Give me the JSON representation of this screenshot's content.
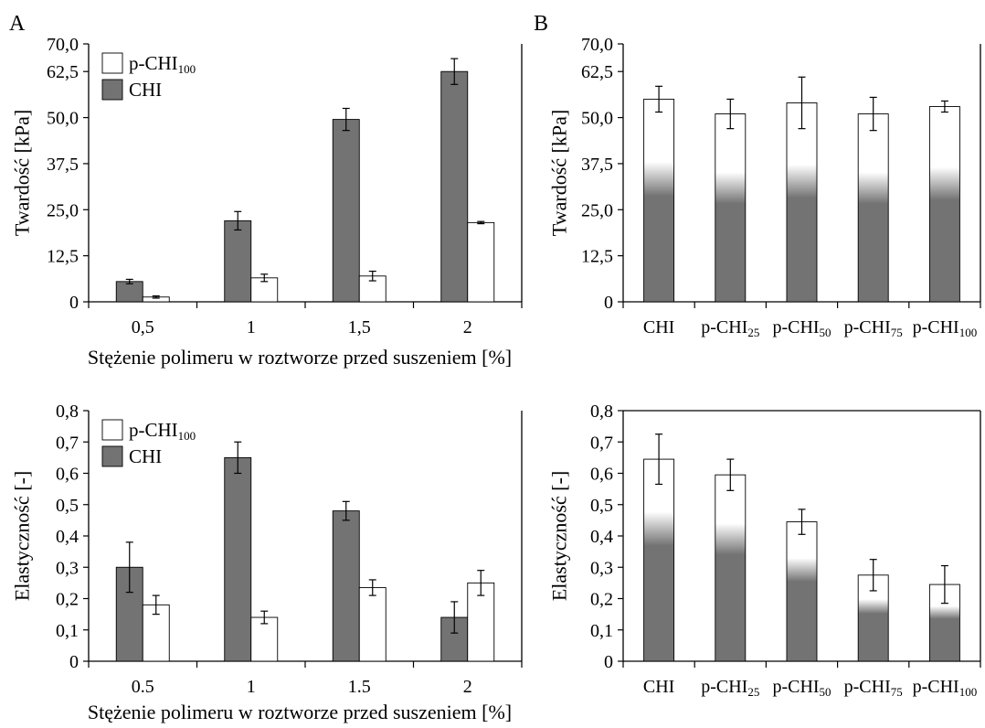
{
  "figure": {
    "panel_a_letter": "A",
    "panel_b_letter": "B"
  },
  "colors": {
    "chi": "#737373",
    "pchi": "#ffffff",
    "edge": "#000000"
  },
  "chart_data": [
    {
      "id": "top_left",
      "type": "bar",
      "xlabel": "Stężenie polimeru w roztworze przed suszeniem [%]",
      "ylabel": "Twardość [kPa]",
      "ylim": [
        0,
        70
      ],
      "yticks": [
        "0",
        "12,5",
        "25,0",
        "37,5",
        "50,0",
        "62,5",
        "70,0"
      ],
      "ytick_values": [
        0,
        12.5,
        25,
        37.5,
        50,
        62.5,
        70
      ],
      "categories": [
        "0,5",
        "1",
        "1,5",
        "2"
      ],
      "legend": [
        {
          "base": "p-CHI",
          "sub": "100",
          "fill": "pchi"
        },
        {
          "base": "CHI",
          "sub": "",
          "fill": "chi"
        }
      ],
      "legend_position": "top-left",
      "series": [
        {
          "name": "CHI",
          "fill": "chi",
          "values": [
            5.5,
            22.0,
            49.5,
            62.5
          ],
          "errors": [
            0.6,
            2.5,
            3.0,
            3.5
          ]
        },
        {
          "name": "p-CHI100",
          "fill": "pchi",
          "values": [
            1.3,
            6.5,
            7.0,
            21.5
          ],
          "errors": [
            0.3,
            1.0,
            1.3,
            0.3
          ]
        }
      ]
    },
    {
      "id": "top_right",
      "type": "bar",
      "xlabel": "",
      "ylabel": "Twardość [kPa]",
      "ylim": [
        0,
        70
      ],
      "yticks": [
        "0",
        "12,5",
        "25,0",
        "37,5",
        "50,0",
        "62,5",
        "70,0"
      ],
      "ytick_values": [
        0,
        12.5,
        25,
        37.5,
        50,
        62.5,
        70
      ],
      "categories": [
        {
          "base": "CHI",
          "sub": ""
        },
        {
          "base": "p-CHI",
          "sub": "25"
        },
        {
          "base": "p-CHI",
          "sub": "50"
        },
        {
          "base": "p-CHI",
          "sub": "75"
        },
        {
          "base": "p-CHI",
          "sub": "100"
        }
      ],
      "series": [
        {
          "name": "",
          "fill": "gradient",
          "values": [
            55.0,
            51.0,
            54.0,
            51.0,
            53.0
          ],
          "errors": [
            3.5,
            4.0,
            7.0,
            4.5,
            1.5
          ],
          "grey_fraction": [
            0.55,
            0.55,
            0.55,
            0.55,
            0.55
          ]
        }
      ]
    },
    {
      "id": "bottom_left",
      "type": "bar",
      "xlabel": "Stężenie polimeru w roztworze przed suszeniem [%]",
      "ylabel": "Elastyczność [-]",
      "ylim": [
        0,
        0.8
      ],
      "yticks": [
        "0",
        "0,1",
        "0,2",
        "0,3",
        "0,4",
        "0,5",
        "0,6",
        "0,7",
        "0,8"
      ],
      "ytick_values": [
        0,
        0.1,
        0.2,
        0.3,
        0.4,
        0.5,
        0.6,
        0.7,
        0.8
      ],
      "categories": [
        "0.5",
        "1",
        "1.5",
        "2"
      ],
      "legend": [
        {
          "base": "p-CHI",
          "sub": "100",
          "fill": "pchi"
        },
        {
          "base": "CHI",
          "sub": "",
          "fill": "chi"
        }
      ],
      "legend_position": "top-left",
      "series": [
        {
          "name": "CHI",
          "fill": "chi",
          "values": [
            0.3,
            0.65,
            0.48,
            0.14
          ],
          "errors": [
            0.08,
            0.05,
            0.03,
            0.05
          ]
        },
        {
          "name": "p-CHI100",
          "fill": "pchi",
          "values": [
            0.18,
            0.14,
            0.235,
            0.25
          ],
          "errors": [
            0.03,
            0.02,
            0.025,
            0.04
          ]
        }
      ]
    },
    {
      "id": "bottom_right",
      "type": "bar",
      "xlabel": "",
      "ylabel": "Elastyczność [-]",
      "ylim": [
        0,
        0.8
      ],
      "yticks": [
        "0",
        "0,1",
        "0,2",
        "0,3",
        "0,4",
        "0,5",
        "0,6",
        "0,7",
        "0,8"
      ],
      "ytick_values": [
        0,
        0.1,
        0.2,
        0.3,
        0.4,
        0.5,
        0.6,
        0.7,
        0.8
      ],
      "categories": [
        {
          "base": "CHI",
          "sub": ""
        },
        {
          "base": "p-CHI",
          "sub": "25"
        },
        {
          "base": "p-CHI",
          "sub": "50"
        },
        {
          "base": "p-CHI",
          "sub": "75"
        },
        {
          "base": "p-CHI",
          "sub": "100"
        }
      ],
      "series": [
        {
          "name": "",
          "fill": "gradient",
          "values": [
            0.645,
            0.595,
            0.445,
            0.275,
            0.245
          ],
          "errors": [
            0.08,
            0.05,
            0.04,
            0.05,
            0.06
          ],
          "grey_fraction": [
            0.6,
            0.6,
            0.6,
            0.58,
            0.58
          ]
        }
      ]
    }
  ]
}
